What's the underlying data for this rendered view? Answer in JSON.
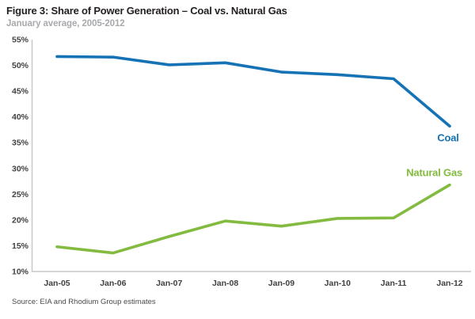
{
  "chart_data": {
    "type": "line",
    "title": "Figure 3: Share of Power Generation – Coal vs. Natural Gas",
    "subtitle": "January average, 2005-2012",
    "source": "Source: EIA and Rhodium Group estimates",
    "categories": [
      "Jan-05",
      "Jan-06",
      "Jan-07",
      "Jan-08",
      "Jan-09",
      "Jan-10",
      "Jan-11",
      "Jan-12"
    ],
    "series": [
      {
        "name": "Coal",
        "color": "#1573b5",
        "values": [
          51.7,
          51.6,
          50.1,
          50.5,
          48.7,
          48.2,
          47.4,
          38.2
        ]
      },
      {
        "name": "Natural Gas",
        "color": "#82bb3f",
        "values": [
          14.8,
          13.6,
          16.8,
          19.8,
          18.8,
          20.3,
          20.4,
          26.8
        ]
      }
    ],
    "xlabel": "",
    "ylabel": "",
    "ylim": [
      10,
      55
    ],
    "ytick_step": 5,
    "ytick_suffix": "%",
    "grid": false,
    "legend_position": "inline-end-labels"
  },
  "colors": {
    "title": "#231f20",
    "subtitle": "#a7a9ac",
    "axis": "#c8c9cb",
    "tick": "#414042",
    "source": "#4b4b4d",
    "coal": "#1573b5",
    "natural_gas": "#82bb3f"
  }
}
